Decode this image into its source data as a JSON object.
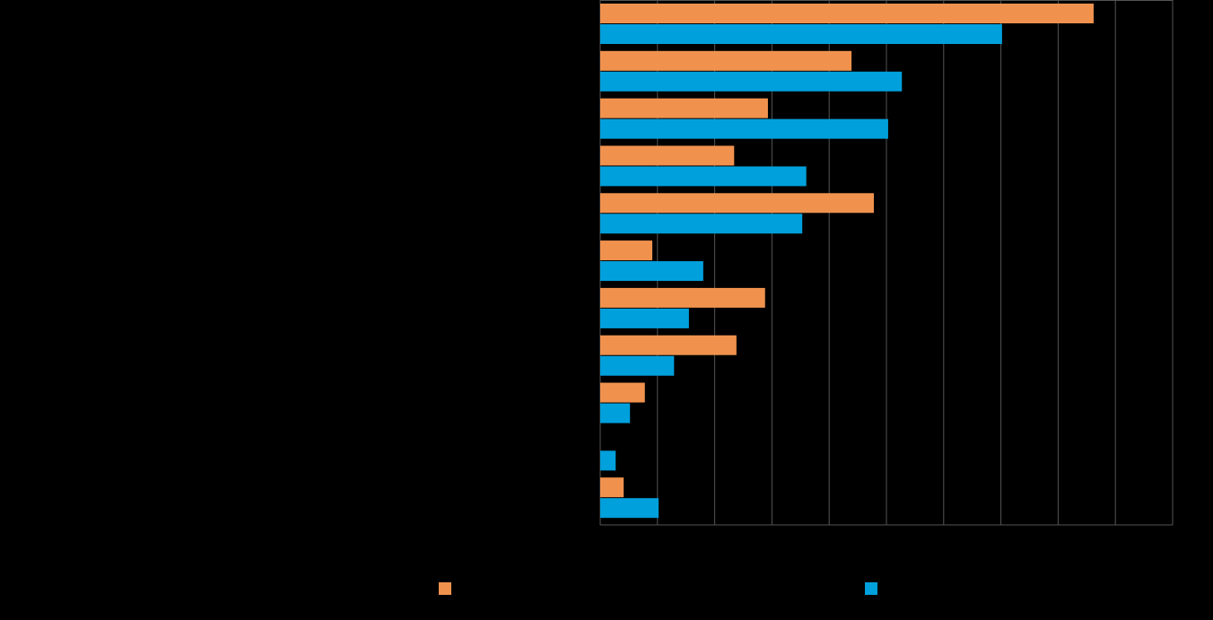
{
  "chart_data": {
    "type": "barh",
    "categories": [
      null,
      null,
      null,
      null,
      null,
      null,
      null,
      null,
      null,
      null,
      null
    ],
    "series": [
      {
        "color": "#f0924e",
        "values": [
          8.62,
          4.39,
          2.93,
          2.34,
          4.78,
          0.91,
          2.88,
          2.38,
          0.78,
          null,
          0.41
        ]
      },
      {
        "color": "#00a0dc",
        "values": [
          7.02,
          5.27,
          5.03,
          3.6,
          3.53,
          1.8,
          1.55,
          1.29,
          0.52,
          0.27,
          1.02
        ]
      }
    ],
    "xlim": [
      0,
      10
    ],
    "xticks": [
      0,
      1,
      2,
      3,
      4,
      5,
      6,
      7,
      8,
      9,
      10
    ],
    "grid": true
  }
}
